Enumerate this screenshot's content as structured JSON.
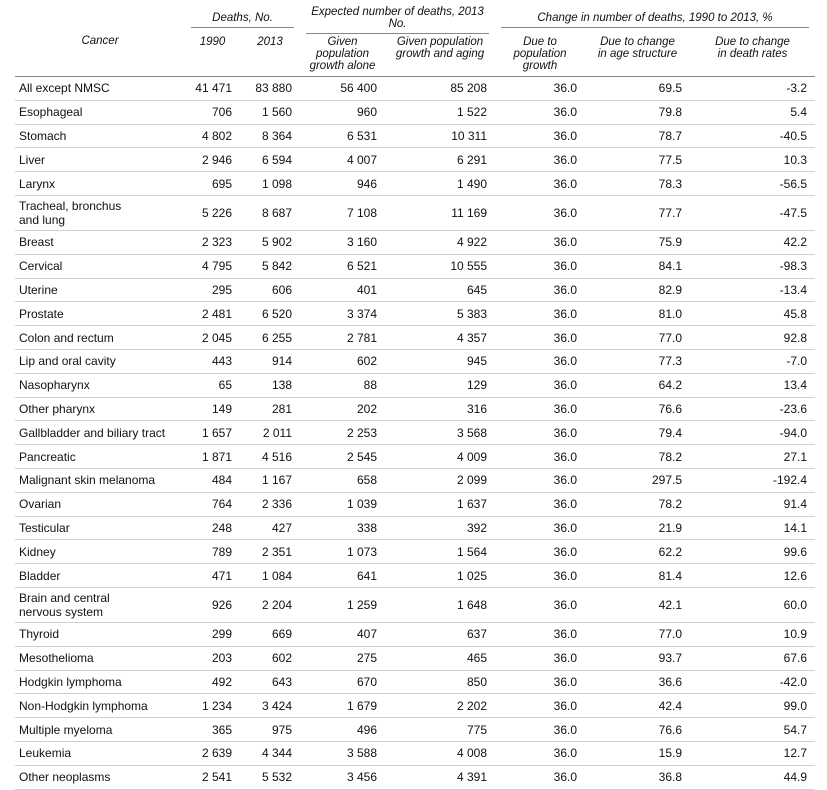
{
  "table": {
    "header": {
      "cancer": "Cancer",
      "groups": [
        "Deaths, No.",
        "Expected number of deaths, 2013 No.",
        "Change in number of deaths, 1990 to 2013, %"
      ],
      "subheaders": [
        "1990",
        "2013",
        "Given population\ngrowth alone",
        "Given population\ngrowth and aging",
        "Due to population\ngrowth",
        "Due to change\nin age structure",
        "Due to change\nin death rates"
      ]
    },
    "rows": [
      [
        "All except NMSC",
        "41 471",
        "83 880",
        "56 400",
        "85 208",
        "36.0",
        "69.5",
        "-3.2"
      ],
      [
        "Esophageal",
        "706",
        "1 560",
        "960",
        "1 522",
        "36.0",
        "79.8",
        "5.4"
      ],
      [
        "Stomach",
        "4 802",
        "8 364",
        "6 531",
        "10 311",
        "36.0",
        "78.7",
        "-40.5"
      ],
      [
        "Liver",
        "2 946",
        "6 594",
        "4 007",
        "6 291",
        "36.0",
        "77.5",
        "10.3"
      ],
      [
        "Larynx",
        "695",
        "1 098",
        "946",
        "1 490",
        "36.0",
        "78.3",
        "-56.5"
      ],
      [
        "Tracheal, bronchus\nand lung",
        "5 226",
        "8 687",
        "7 108",
        "11 169",
        "36.0",
        "77.7",
        "-47.5"
      ],
      [
        "Breast",
        "2 323",
        "5 902",
        "3 160",
        "4 922",
        "36.0",
        "75.9",
        "42.2"
      ],
      [
        "Cervical",
        "4 795",
        "5 842",
        "6 521",
        "10 555",
        "36.0",
        "84.1",
        "-98.3"
      ],
      [
        "Uterine",
        "295",
        "606",
        "401",
        "645",
        "36.0",
        "82.9",
        "-13.4"
      ],
      [
        "Prostate",
        "2 481",
        "6 520",
        "3 374",
        "5 383",
        "36.0",
        "81.0",
        "45.8"
      ],
      [
        "Colon and rectum",
        "2 045",
        "6 255",
        "2 781",
        "4 357",
        "36.0",
        "77.0",
        "92.8"
      ],
      [
        "Lip and oral cavity",
        "443",
        "914",
        "602",
        "945",
        "36.0",
        "77.3",
        "-7.0"
      ],
      [
        "Nasopharynx",
        "65",
        "138",
        "88",
        "129",
        "36.0",
        "64.2",
        "13.4"
      ],
      [
        "Other pharynx",
        "149",
        "281",
        "202",
        "316",
        "36.0",
        "76.6",
        "-23.6"
      ],
      [
        "Gallbladder and biliary tract",
        "1 657",
        "2 011",
        "2 253",
        "3 568",
        "36.0",
        "79.4",
        "-94.0"
      ],
      [
        "Pancreatic",
        "1 871",
        "4 516",
        "2 545",
        "4 009",
        "36.0",
        "78.2",
        "27.1"
      ],
      [
        "Malignant skin melanoma",
        "484",
        "1 167",
        "658",
        "2 099",
        "36.0",
        "297.5",
        "-192.4"
      ],
      [
        "Ovarian",
        "764",
        "2 336",
        "1 039",
        "1 637",
        "36.0",
        "78.2",
        "91.4"
      ],
      [
        "Testicular",
        "248",
        "427",
        "338",
        "392",
        "36.0",
        "21.9",
        "14.1"
      ],
      [
        "Kidney",
        "789",
        "2 351",
        "1 073",
        "1 564",
        "36.0",
        "62.2",
        "99.6"
      ],
      [
        "Bladder",
        "471",
        "1 084",
        "641",
        "1 025",
        "36.0",
        "81.4",
        "12.6"
      ],
      [
        "Brain and central\nnervous system",
        "926",
        "2 204",
        "1 259",
        "1 648",
        "36.0",
        "42.1",
        "60.0"
      ],
      [
        "Thyroid",
        "299",
        "669",
        "407",
        "637",
        "36.0",
        "77.0",
        "10.9"
      ],
      [
        "Mesothelioma",
        "203",
        "602",
        "275",
        "465",
        "36.0",
        "93.7",
        "67.6"
      ],
      [
        "Hodgkin lymphoma",
        "492",
        "643",
        "670",
        "850",
        "36.0",
        "36.6",
        "-42.0"
      ],
      [
        "Non-Hodgkin lymphoma",
        "1 234",
        "3 424",
        "1 679",
        "2 202",
        "36.0",
        "42.4",
        "99.0"
      ],
      [
        "Multiple myeloma",
        "365",
        "975",
        "496",
        "775",
        "36.0",
        "76.6",
        "54.7"
      ],
      [
        "Leukemia",
        "2 639",
        "4 344",
        "3 588",
        "4 008",
        "36.0",
        "15.9",
        "12.7"
      ],
      [
        "Other neoplasms",
        "2 541",
        "5 532",
        "3 456",
        "4 391",
        "36.0",
        "36.8",
        "44.9"
      ]
    ]
  }
}
